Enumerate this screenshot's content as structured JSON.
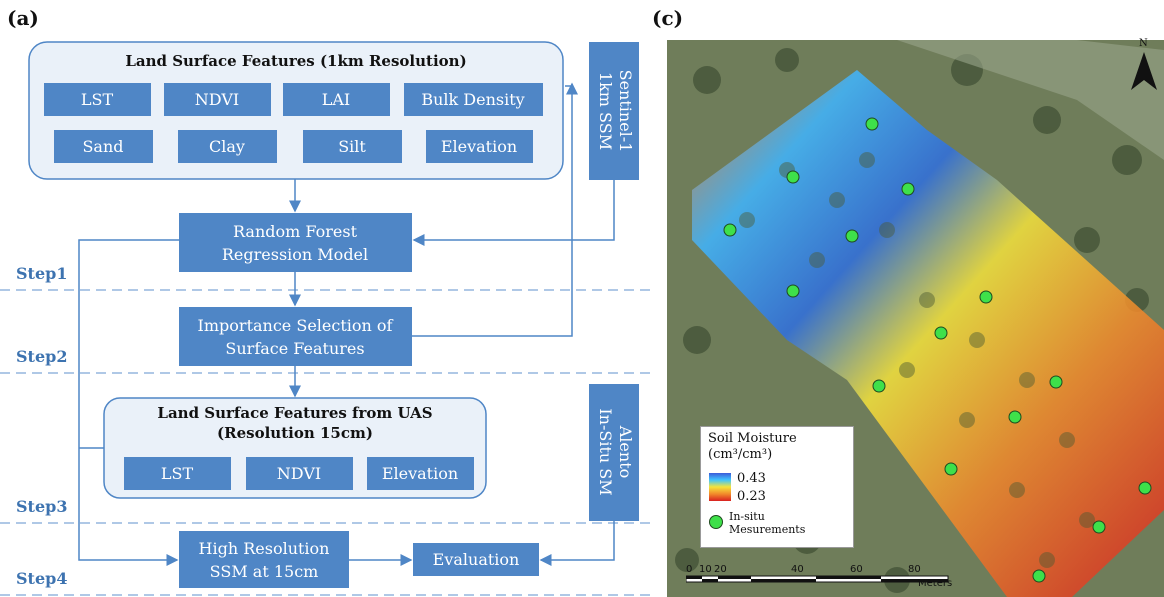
{
  "panel_a_label": "(a)",
  "panel_c_label": "(c)",
  "boxes": {
    "lsf_1km_title": "Land Surface Features (1km Resolution)",
    "lsf_1km_items": [
      "LST",
      "NDVI",
      "LAI",
      "Bulk Density",
      "Sand",
      "Clay",
      "Silt",
      "Elevation"
    ],
    "sentinel": [
      "Sentinel-1",
      "1km SSM"
    ],
    "rf_model": [
      "Random Forest",
      "Regression Model"
    ],
    "importance": [
      "Importance Selection of",
      "Surface Features"
    ],
    "lsf_uas_title": [
      "Land Surface Features from UAS",
      "(Resolution 15cm)"
    ],
    "lsf_uas_items": [
      "LST",
      "NDVI",
      "Elevation"
    ],
    "alento": [
      "Alento",
      "In-Situ SM"
    ],
    "high_res": [
      "High Resolution",
      "SSM at 15cm"
    ],
    "evaluation": "Evaluation"
  },
  "steps": [
    "Step1",
    "Step2",
    "Step3",
    "Step4"
  ],
  "map": {
    "north_label": "N",
    "legend_title": [
      "Soil Moisture",
      "(cm³/cm³)"
    ],
    "legend_max": "0.43",
    "legend_min": "0.23",
    "legend_insitu": [
      "In-situ",
      "Mesurements"
    ],
    "scale_ticks": [
      "0",
      "10",
      "20",
      "40",
      "60",
      "80"
    ],
    "scale_unit": "Meters"
  },
  "colors": {
    "box_fill": "#4f86c6",
    "container_fill": "#eaf1f9",
    "line": "#4f86c6",
    "step_text": "#3d73b0"
  }
}
